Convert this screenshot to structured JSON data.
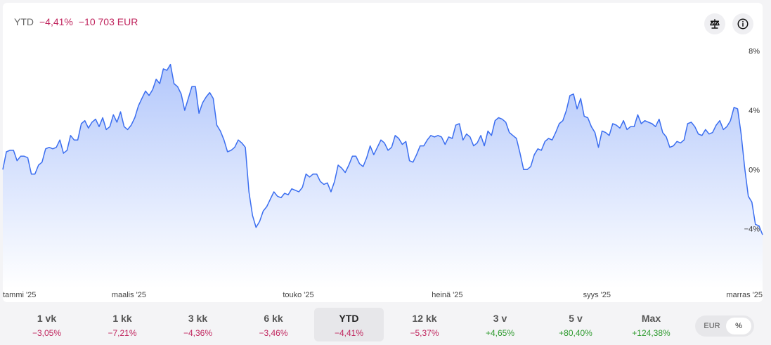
{
  "summary": {
    "period": "YTD",
    "change_pct": "−4,41%",
    "change_abs": "−10 703 EUR"
  },
  "icons": {
    "compare": "balance-scale-icon",
    "info": "info-icon"
  },
  "colors": {
    "line": "#3b6ef0",
    "fill_top": "#aec4fb",
    "negative": "#c0245d",
    "positive": "#2e9a2e"
  },
  "chart_data": {
    "type": "area",
    "title": "",
    "xlabel": "",
    "ylabel": "",
    "ylim": [
      -8.0,
      8.6
    ],
    "y_ticks": [
      8,
      4,
      0,
      -4
    ],
    "y_tick_labels": [
      "8%",
      "4%",
      "0%",
      "−4%"
    ],
    "x_tick_labels": [
      "tammi '25",
      "maalis '25",
      "touko '25",
      "heinä '25",
      "syys '25",
      "marras '25"
    ],
    "x_tick_positions": [
      0,
      0.166,
      0.389,
      0.585,
      0.782,
      1.0
    ],
    "series": [
      {
        "values": [
          0.0,
          1.2,
          1.3,
          1.3,
          0.6,
          0.9,
          0.9,
          0.8,
          -0.3,
          -0.3,
          0.3,
          0.5,
          1.4,
          1.5,
          1.4,
          1.5,
          2.0,
          1.1,
          1.3,
          2.3,
          2.0,
          2.0,
          3.1,
          3.3,
          2.8,
          3.2,
          3.4,
          2.9,
          3.5,
          2.7,
          2.9,
          3.7,
          3.2,
          3.9,
          2.9,
          2.7,
          3.0,
          3.5,
          4.3,
          4.8,
          5.3,
          5.0,
          5.4,
          6.1,
          5.8,
          6.8,
          6.7,
          7.1,
          5.8,
          5.6,
          5.1,
          4.0,
          4.8,
          5.6,
          5.6,
          3.8,
          4.5,
          4.9,
          5.2,
          4.8,
          3.0,
          2.6,
          2.0,
          1.2,
          1.3,
          1.5,
          2.0,
          1.8,
          1.5,
          -1.5,
          -3.1,
          -3.9,
          -3.5,
          -2.8,
          -2.5,
          -2.0,
          -1.5,
          -1.8,
          -1.9,
          -1.6,
          -1.7,
          -1.3,
          -1.4,
          -1.5,
          -1.2,
          -0.3,
          -0.5,
          -0.3,
          -0.3,
          -0.8,
          -1.0,
          -0.9,
          -1.5,
          -0.8,
          0.3,
          0.1,
          -0.2,
          0.3,
          0.9,
          0.9,
          0.4,
          0.2,
          0.8,
          1.6,
          1.0,
          1.5,
          2.0,
          1.8,
          1.3,
          1.5,
          2.3,
          2.1,
          1.7,
          1.9,
          0.6,
          0.5,
          1.0,
          1.6,
          1.6,
          2.0,
          2.3,
          2.2,
          2.3,
          2.2,
          1.7,
          2.2,
          2.1,
          3.0,
          3.1,
          2.0,
          2.4,
          2.2,
          1.6,
          1.8,
          2.3,
          1.6,
          2.6,
          2.3,
          3.3,
          3.5,
          3.4,
          3.2,
          2.5,
          2.3,
          2.1,
          1.1,
          0.0,
          0.0,
          0.2,
          1.0,
          1.4,
          1.3,
          1.9,
          2.1,
          2.0,
          2.5,
          3.1,
          3.3,
          4.0,
          5.0,
          5.1,
          4.1,
          4.8,
          3.6,
          3.5,
          2.9,
          2.5,
          1.5,
          2.6,
          2.5,
          2.3,
          3.1,
          3.0,
          2.8,
          3.3,
          2.7,
          2.9,
          2.9,
          3.7,
          3.1,
          3.3,
          3.2,
          3.1,
          2.9,
          3.4,
          2.5,
          2.2,
          1.5,
          1.6,
          1.9,
          1.8,
          2.0,
          3.1,
          3.2,
          2.9,
          2.4,
          2.3,
          2.7,
          2.4,
          2.5,
          3.0,
          3.3,
          2.7,
          2.9,
          3.3,
          4.2,
          4.1,
          2.4,
          0.1,
          -1.8,
          -2.2,
          -3.7,
          -3.8,
          -4.4
        ]
      }
    ]
  },
  "ranges": [
    {
      "label": "1 vk",
      "value": "−3,05%",
      "sign": "neg"
    },
    {
      "label": "1 kk",
      "value": "−7,21%",
      "sign": "neg"
    },
    {
      "label": "3 kk",
      "value": "−4,36%",
      "sign": "neg"
    },
    {
      "label": "6 kk",
      "value": "−3,46%",
      "sign": "neg"
    },
    {
      "label": "YTD",
      "value": "−4,41%",
      "sign": "neg",
      "active": true
    },
    {
      "label": "12 kk",
      "value": "−5,37%",
      "sign": "neg"
    },
    {
      "label": "3 v",
      "value": "+4,65%",
      "sign": "pos"
    },
    {
      "label": "5 v",
      "value": "+80,40%",
      "sign": "pos"
    },
    {
      "label": "Max",
      "value": "+124,38%",
      "sign": "pos"
    }
  ],
  "toggle": {
    "eur": "EUR",
    "pct": "%",
    "selected": "pct"
  }
}
